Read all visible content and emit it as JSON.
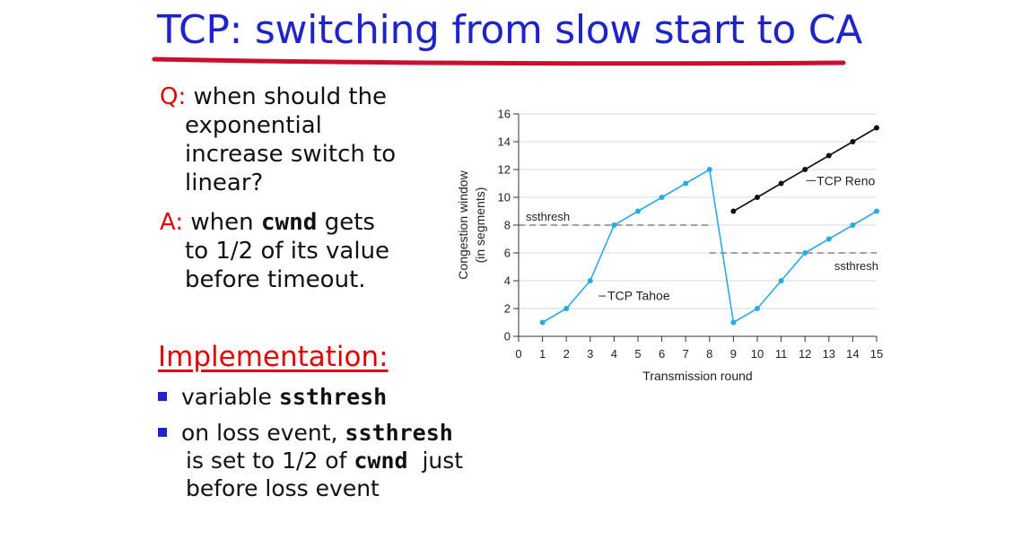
{
  "slide": {
    "title": "TCP: switching from slow start to CA",
    "q_tag": "Q:",
    "q_text_1": " when should the",
    "q_text_2": "exponential",
    "q_text_3": "increase switch to",
    "q_text_4": "linear?",
    "a_tag": "A:",
    "a_text_1a": " when ",
    "a_code": "cwnd",
    "a_text_1b": " gets",
    "a_text_2": "to 1/2 of its value",
    "a_text_3": "before timeout.",
    "impl_title": "Implementation:",
    "bullet1_a": "variable ",
    "bullet1_code": "ssthresh",
    "bullet2_a": "on loss event, ",
    "bullet2_code": "ssthresh",
    "bullet2_b": "is set to 1/2 of ",
    "bullet2_code2": "cwnd",
    "bullet2_c": "  just",
    "bullet2_d": "before loss event"
  },
  "colors": {
    "title": "#1f24c8",
    "accent_red": "#e00000",
    "tahoe": "#29abe2",
    "reno": "#111111",
    "underline_stroke": "#c8102e"
  },
  "chart_data": {
    "type": "line",
    "xlabel": "Transmission round",
    "ylabel_line1": "Congestion window",
    "ylabel_line2": "(in segments)",
    "xlim": [
      0,
      15
    ],
    "ylim": [
      0,
      16
    ],
    "x_ticks": [
      0,
      1,
      2,
      3,
      4,
      5,
      6,
      7,
      8,
      9,
      10,
      11,
      12,
      13,
      14,
      15
    ],
    "y_ticks": [
      0,
      2,
      4,
      6,
      8,
      10,
      12,
      14,
      16
    ],
    "grid": true,
    "series": [
      {
        "name": "TCP Tahoe",
        "color": "#29abe2",
        "x": [
          1,
          2,
          3,
          4,
          5,
          6,
          7,
          8,
          9,
          10,
          11,
          12,
          13,
          14,
          15
        ],
        "y": [
          1,
          2,
          4,
          8,
          9,
          10,
          11,
          12,
          1,
          2,
          4,
          6,
          7,
          8,
          9
        ]
      },
      {
        "name": "TCP Reno",
        "color": "#111111",
        "x": [
          9,
          10,
          11,
          12,
          13,
          14,
          15
        ],
        "y": [
          9,
          10,
          11,
          12,
          13,
          14,
          15
        ]
      }
    ],
    "annotations": [
      {
        "text": "ssthresh",
        "x_start": 0,
        "x_end": 8,
        "y": 8
      },
      {
        "text": "ssthresh",
        "x_start": 8,
        "x_end": 15,
        "y": 6
      }
    ]
  }
}
